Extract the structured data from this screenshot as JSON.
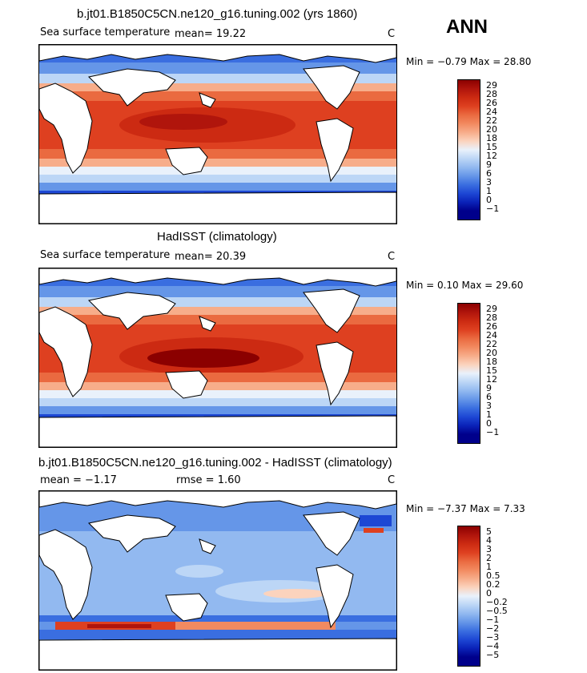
{
  "season": "ANN",
  "panels": [
    {
      "title": "b.jt01.B1850C5CN.ne120_g16.tuning.002 (yrs 1860)",
      "variable": "Sea surface temperature",
      "stat_text": "mean=  19.22",
      "units": "C",
      "minmax": "Min =   −0.79  Max =   28.80",
      "ticks": [
        "29",
        "28",
        "26",
        "24",
        "22",
        "20",
        "18",
        "15",
        "12",
        "9",
        "6",
        "3",
        "1",
        "0",
        "−1"
      ],
      "colors": [
        "#8b0000",
        "#b0150c",
        "#cc2a12",
        "#de4020",
        "#ea6a40",
        "#f28a60",
        "#f7ad8a",
        "#fbd3bd",
        "#e9f1fb",
        "#bcd6f6",
        "#92b9f0",
        "#6596e8",
        "#3a6ee0",
        "#1d47d4",
        "#0a22b8",
        "#00008b"
      ]
    },
    {
      "title": "HadISST (climatology)",
      "variable": "Sea surface temperature",
      "stat_text": "mean=  20.39",
      "units": "C",
      "minmax": "Min =    0.10  Max =   29.60",
      "ticks": [
        "29",
        "28",
        "26",
        "24",
        "22",
        "20",
        "18",
        "15",
        "12",
        "9",
        "6",
        "3",
        "1",
        "0",
        "−1"
      ],
      "colors": [
        "#8b0000",
        "#b0150c",
        "#cc2a12",
        "#de4020",
        "#ea6a40",
        "#f28a60",
        "#f7ad8a",
        "#fbd3bd",
        "#e9f1fb",
        "#bcd6f6",
        "#92b9f0",
        "#6596e8",
        "#3a6ee0",
        "#1d47d4",
        "#0a22b8",
        "#00008b"
      ]
    },
    {
      "title": "b.jt01.B1850C5CN.ne120_g16.tuning.002 - HadISST (climatology)",
      "variable": "mean =   −1.17",
      "stat_text": "rmse =    1.60",
      "units": "C",
      "minmax": "Min =   −7.37  Max =    7.33",
      "ticks": [
        "5",
        "4",
        "3",
        "2",
        "1",
        "0.5",
        "0.2",
        "0",
        "−0.2",
        "−0.5",
        "−1",
        "−2",
        "−3",
        "−4",
        "−5"
      ],
      "colors": [
        "#8b0000",
        "#b0150c",
        "#cc2a12",
        "#de4020",
        "#ea6a40",
        "#f28a60",
        "#f7ad8a",
        "#fbd3bd",
        "#e9f1fb",
        "#bcd6f6",
        "#92b9f0",
        "#6596e8",
        "#3a6ee0",
        "#1d47d4",
        "#0a22b8",
        "#00008b"
      ]
    }
  ]
}
